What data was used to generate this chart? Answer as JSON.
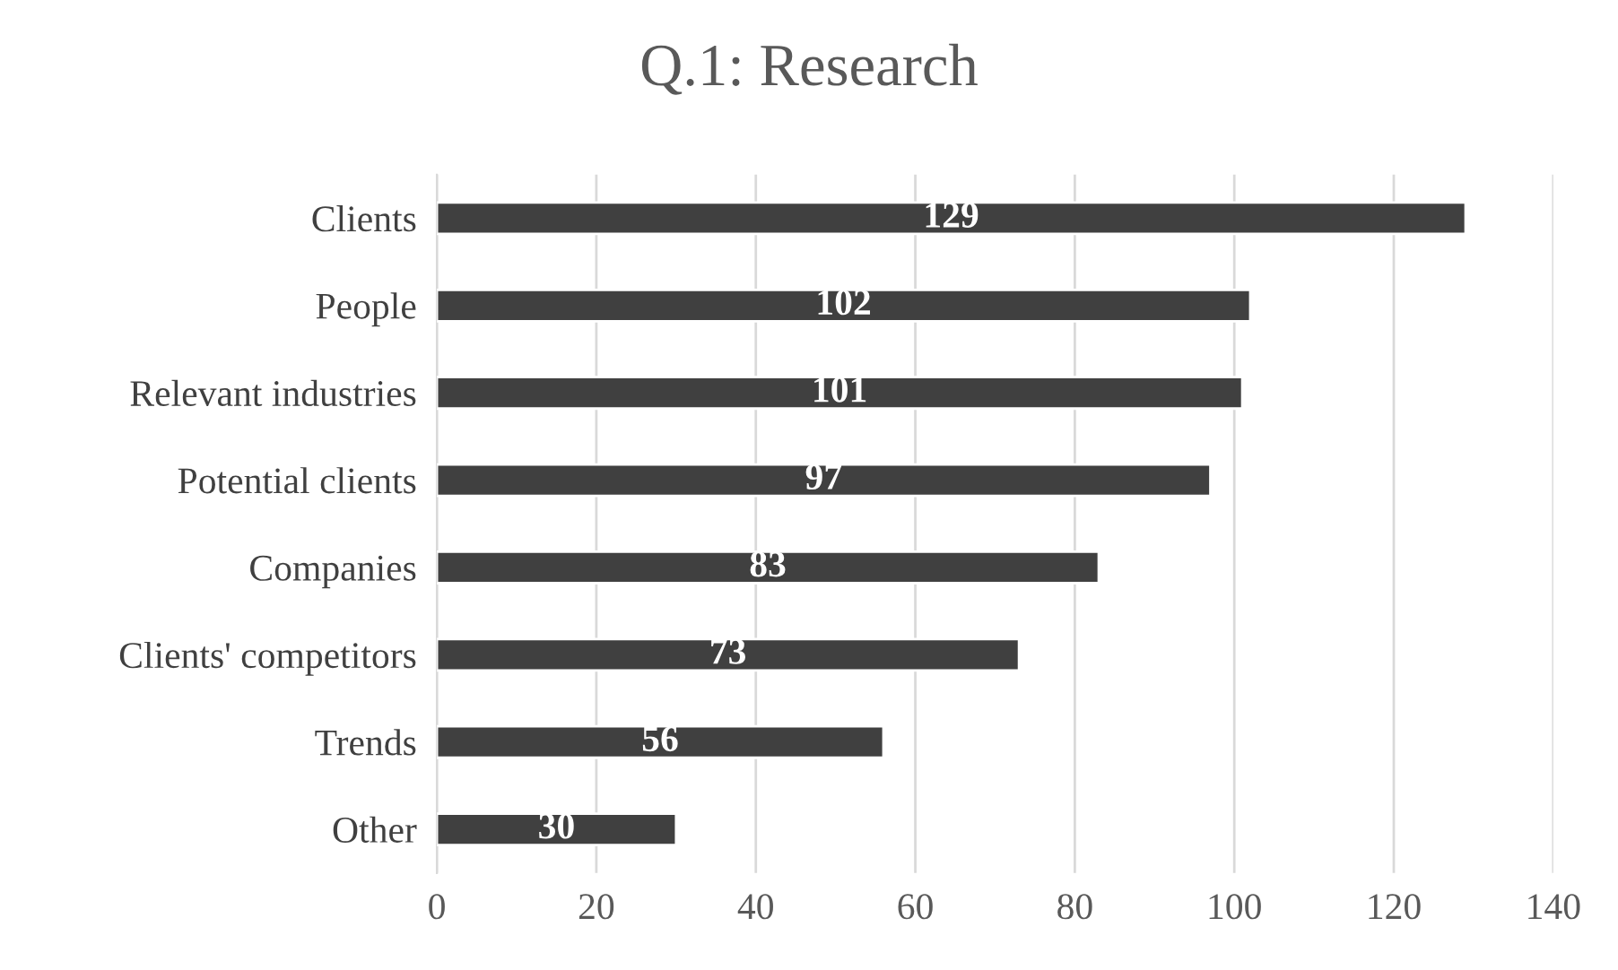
{
  "chart_data": {
    "type": "bar",
    "orientation": "horizontal",
    "title": "Q.1: Research",
    "categories": [
      "Clients",
      "People",
      "Relevant industries",
      "Potential clients",
      "Companies",
      "Clients' competitors",
      "Trends",
      "Other"
    ],
    "values": [
      129,
      102,
      101,
      97,
      83,
      73,
      56,
      30
    ],
    "color": "#404040",
    "xlim": [
      0,
      140
    ],
    "xticks": [
      0,
      20,
      40,
      60,
      80,
      100,
      120,
      140
    ],
    "grid": "x",
    "data_labels": true
  }
}
